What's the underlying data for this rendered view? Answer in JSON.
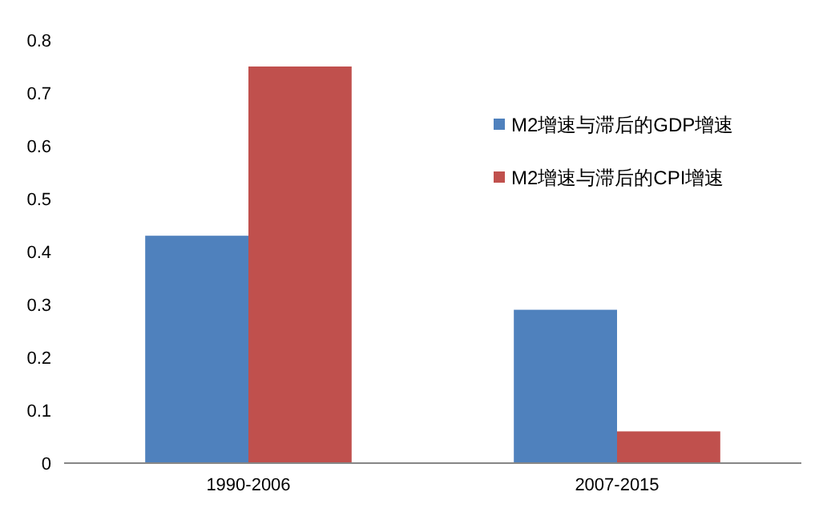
{
  "chart_data": {
    "type": "bar",
    "categories": [
      "1990-2006",
      "2007-2015"
    ],
    "series": [
      {
        "name": "M2增速与滞后的GDP增速",
        "color": "#4f81bd",
        "values": [
          0.43,
          0.29
        ]
      },
      {
        "name": "M2增速与滞后的CPI增速",
        "color": "#c0504d",
        "values": [
          0.75,
          0.06
        ]
      }
    ],
    "ylim": [
      0,
      0.8
    ],
    "yticks": [
      0,
      0.1,
      0.2,
      0.3,
      0.4,
      0.5,
      0.6,
      0.7,
      0.8
    ],
    "grid": false,
    "legend": "top right"
  }
}
